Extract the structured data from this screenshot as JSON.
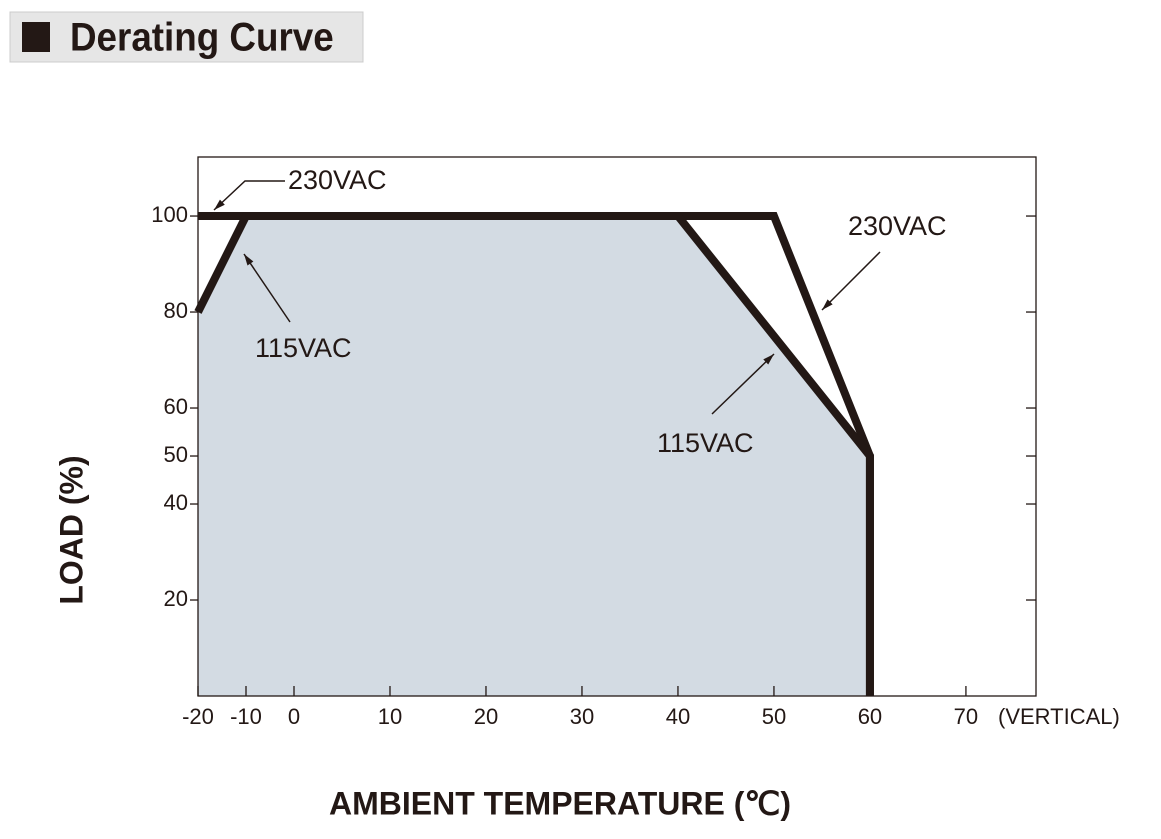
{
  "chart_data": {
    "type": "line",
    "title": "Derating Curve",
    "xlabel": "AMBIENT TEMPERATURE (℃)",
    "ylabel": "LOAD (%)",
    "xnote": "(VERTICAL)",
    "xlim": [
      -20,
      77.3
    ],
    "ylim": [
      0,
      112.3
    ],
    "xticks": [
      -20,
      -10,
      0,
      10,
      20,
      30,
      40,
      50,
      60,
      70
    ],
    "yticks": [
      20,
      40,
      50,
      60,
      80,
      100
    ],
    "fill_color": "#d3dbe3",
    "series": [
      {
        "name": "230VAC",
        "color": "#231815",
        "x": [
          -20,
          50,
          60,
          60
        ],
        "values": [
          100,
          100,
          50,
          0
        ]
      },
      {
        "name": "115VAC",
        "color": "#231815",
        "x": [
          -20,
          -10,
          40,
          60,
          60
        ],
        "values": [
          80,
          100,
          100,
          50,
          0
        ],
        "filled": true
      }
    ],
    "annotations": [
      "230VAC",
      "115VAC",
      "230VAC",
      "115VAC"
    ]
  }
}
